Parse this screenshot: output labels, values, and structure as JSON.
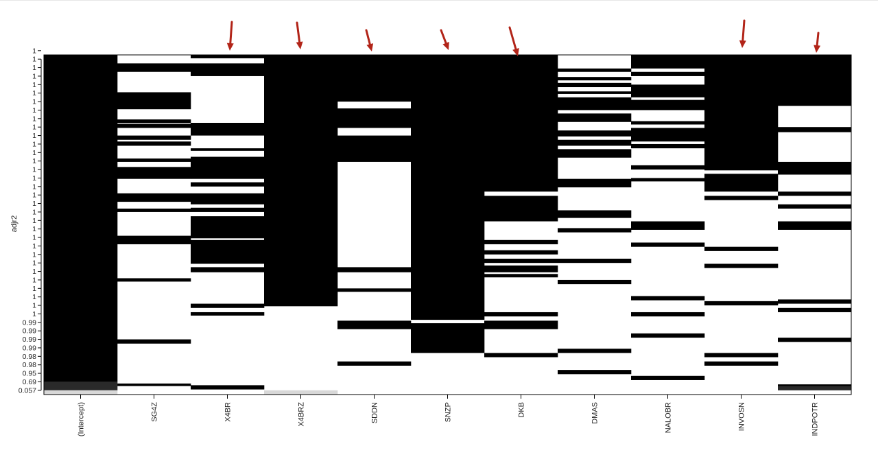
{
  "chart_data": {
    "type": "heatmap",
    "title": "",
    "ylabel": "adjr2",
    "xlabel": "",
    "variables": [
      "(Intercept)",
      "SG4Z",
      "X4BR",
      "X4BRZ",
      "SDDN",
      "SNZP",
      "DKB",
      "DMAS",
      "NALOBR",
      "INVOSN",
      "INDPOTR"
    ],
    "ytick_labels": [
      "0.057",
      "0.69",
      "0.95",
      "0.98",
      "0.98",
      "0.99",
      "0.99",
      "0.99",
      "0.99",
      "1",
      "1",
      "1",
      "1",
      "1",
      "1",
      "1",
      "1",
      "1",
      "1",
      "1",
      "1",
      "1",
      "1",
      "1",
      "1",
      "1",
      "1",
      "1",
      "1",
      "1",
      "1",
      "1",
      "1",
      "1",
      "1",
      "1",
      "1",
      "1",
      "1",
      "1",
      "1"
    ],
    "n_rows": 40,
    "fill": {
      "included": "#000000",
      "excluded": "#ffffff"
    },
    "included_rows_from_top": {
      "(Intercept)": [
        [
          0,
          38.5
        ]
      ],
      "SG4Z": [
        [
          1,
          2
        ],
        [
          4.4,
          6.4
        ],
        [
          7.6,
          8
        ],
        [
          8.1,
          8.6
        ],
        [
          9.5,
          10
        ],
        [
          10.2,
          10.7
        ],
        [
          12.2,
          12.6
        ],
        [
          13.2,
          14.6
        ],
        [
          16.3,
          17.3
        ],
        [
          18.1,
          18.5
        ],
        [
          21.3,
          22.3
        ],
        [
          26.3,
          26.7
        ],
        [
          33.5,
          34
        ],
        [
          38.7,
          39
        ]
      ],
      "X4BR": [
        [
          0,
          0.4
        ],
        [
          1,
          2.5
        ],
        [
          8,
          9.5
        ],
        [
          11,
          11.3
        ],
        [
          12,
          14.6
        ],
        [
          15,
          15.5
        ],
        [
          16.3,
          17.6
        ],
        [
          18,
          18.5
        ],
        [
          19,
          21.6
        ],
        [
          21.8,
          24.6
        ],
        [
          25,
          25.6
        ],
        [
          29.3,
          29.8
        ],
        [
          30.3,
          30.7
        ],
        [
          38.9,
          39.4
        ]
      ],
      "X4BRZ": [
        [
          0,
          29.6
        ]
      ],
      "SDDN": [
        [
          0,
          5.5
        ],
        [
          6.3,
          8.6
        ],
        [
          9.5,
          12.6
        ],
        [
          25,
          25.6
        ],
        [
          27.5,
          27.9
        ],
        [
          31.3,
          32.3
        ],
        [
          36.1,
          36.6
        ]
      ],
      "SNZP": [
        [
          0,
          31.2
        ],
        [
          31.6,
          35.1
        ]
      ],
      "DKB": [
        [
          0,
          16.1
        ],
        [
          16.6,
          19.6
        ],
        [
          21.8,
          22.3
        ],
        [
          23,
          23.5
        ],
        [
          24,
          24.5
        ],
        [
          24.8,
          25.6
        ],
        [
          25.8,
          26.2
        ],
        [
          30.3,
          30.8
        ],
        [
          31.3,
          32.3
        ],
        [
          35.1,
          35.6
        ]
      ],
      "DMAS": [
        [
          1.6,
          2
        ],
        [
          2.6,
          3
        ],
        [
          3.3,
          3.8
        ],
        [
          4.3,
          4.6
        ],
        [
          5,
          6.5
        ],
        [
          6.9,
          7.9
        ],
        [
          8.9,
          9.6
        ],
        [
          10,
          10.7
        ],
        [
          11.1,
          12.1
        ],
        [
          14.6,
          15.6
        ],
        [
          18.3,
          19.2
        ],
        [
          20.4,
          20.9
        ],
        [
          24,
          24.5
        ],
        [
          26.5,
          27
        ],
        [
          34.6,
          35.1
        ],
        [
          37.1,
          37.6
        ]
      ],
      "NALOBR": [
        [
          0,
          1.6
        ],
        [
          2,
          2.5
        ],
        [
          3.5,
          5
        ],
        [
          5.3,
          6.5
        ],
        [
          7.8,
          8.2
        ],
        [
          8.6,
          10.2
        ],
        [
          10.5,
          11
        ],
        [
          13,
          13.5
        ],
        [
          14.5,
          14.9
        ],
        [
          19.6,
          20.6
        ],
        [
          22.1,
          22.6
        ],
        [
          28.4,
          28.9
        ],
        [
          30.3,
          30.8
        ],
        [
          32.8,
          33.3
        ],
        [
          37.8,
          38.3
        ]
      ],
      "INVOSN": [
        [
          0,
          13.6
        ],
        [
          14,
          16.1
        ],
        [
          16.6,
          17.1
        ],
        [
          22.6,
          23.1
        ],
        [
          24.6,
          25.1
        ],
        [
          29,
          29.5
        ],
        [
          35.1,
          35.6
        ],
        [
          36.1,
          36.6
        ]
      ],
      "INDPOTR": [
        [
          0,
          6
        ],
        [
          8.5,
          9.1
        ],
        [
          12.6,
          14.1
        ],
        [
          16.1,
          16.6
        ],
        [
          17.6,
          18.1
        ],
        [
          19.6,
          20.6
        ],
        [
          28.8,
          29.3
        ],
        [
          29.8,
          30.3
        ],
        [
          33.3,
          33.8
        ],
        [
          38.8,
          39.4
        ]
      ]
    },
    "grey_cells": [
      {
        "variable": "(Intercept)",
        "from": 38.5,
        "to": 39.5,
        "shade": "#2a2a2a"
      },
      {
        "variable": "(Intercept)",
        "from": 39.5,
        "to": 40,
        "shade": "#d8d8d8"
      },
      {
        "variable": "X4BRZ",
        "from": 39.5,
        "to": 40,
        "shade": "#d8d8d8"
      },
      {
        "variable": "INDPOTR",
        "from": 39,
        "to": 39.5,
        "shade": "#2a2a2a"
      }
    ],
    "annotations": [
      {
        "kind": "arrow",
        "variable": "X4BR",
        "color": "#b22418"
      },
      {
        "kind": "arrow",
        "variable": "X4BRZ",
        "color": "#b22418"
      },
      {
        "kind": "arrow",
        "variable": "SDDN",
        "color": "#b22418"
      },
      {
        "kind": "arrow",
        "variable": "SNZP",
        "color": "#b22418"
      },
      {
        "kind": "arrow",
        "variable": "DKB",
        "color": "#b22418"
      },
      {
        "kind": "arrow",
        "variable": "INVOSN",
        "color": "#b22418"
      },
      {
        "kind": "arrow",
        "variable": "INDPOTR",
        "color": "#b22418"
      }
    ],
    "grid": false,
    "legend": "none"
  }
}
